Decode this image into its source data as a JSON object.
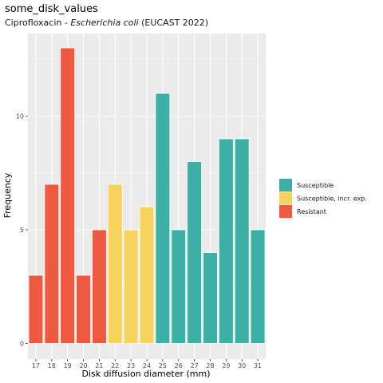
{
  "chart_data": {
    "type": "bar",
    "title": "some_disk_values",
    "subtitle_prefix": "Ciprofloxacin - ",
    "subtitle_italic": "Escherichia coli",
    "subtitle_suffix": " (EUCAST 2022)",
    "xlabel": "Disk diffusion diameter (mm)",
    "ylabel": "Frequency",
    "categories": [
      "17",
      "18",
      "19",
      "20",
      "21",
      "22",
      "23",
      "24",
      "25",
      "26",
      "27",
      "28",
      "29",
      "30",
      "31"
    ],
    "values": [
      3,
      7,
      13,
      3,
      5,
      7,
      5,
      6,
      11,
      5,
      8,
      4,
      9,
      9,
      5
    ],
    "interpretation": [
      "Resistant",
      "Resistant",
      "Resistant",
      "Resistant",
      "Resistant",
      "Susceptible, incr. exp.",
      "Susceptible, incr. exp.",
      "Susceptible, incr. exp.",
      "Susceptible",
      "Susceptible",
      "Susceptible",
      "Susceptible",
      "Susceptible",
      "Susceptible",
      "Susceptible"
    ],
    "yticks": [
      0,
      5,
      10
    ],
    "ylim": [
      0,
      13.65
    ],
    "grid": true,
    "legend_position": "right",
    "legend": [
      {
        "name": "Susceptible",
        "color": "#3CB0A5"
      },
      {
        "name": "Susceptible, incr. exp.",
        "color": "#F5D35C"
      },
      {
        "name": "Resistant",
        "color": "#EE5A3F"
      }
    ],
    "panel_background": "#EBEBEB"
  }
}
